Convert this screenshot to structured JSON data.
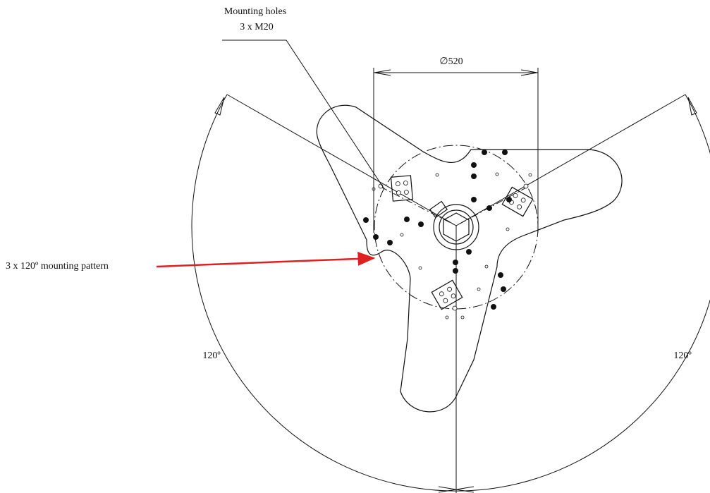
{
  "callout": {
    "line1": "Mounting holes",
    "line2": "3 x M20"
  },
  "dimension": {
    "label": "∅520"
  },
  "pattern_label": "3 x 120º mounting pattern",
  "angles": {
    "left": "120º",
    "right": "120º"
  }
}
